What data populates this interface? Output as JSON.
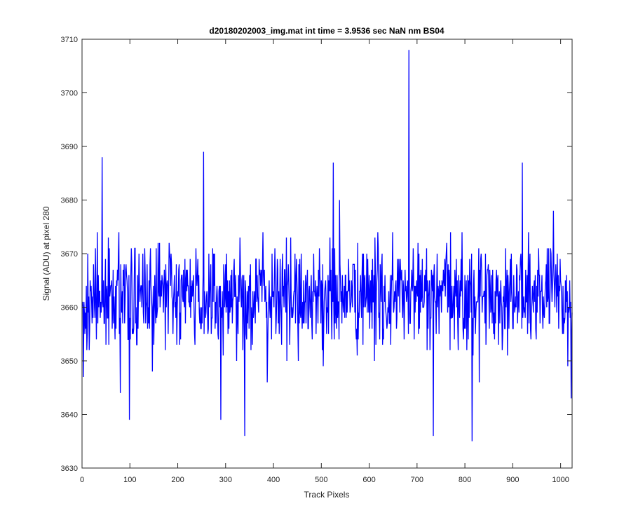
{
  "chart_data": {
    "type": "line",
    "title": "d20180202003_img.mat int time = 3.9536 sec  NaN nm BS04",
    "xlabel": "Track Pixels",
    "ylabel": "Signal (ADU) at pixel 280",
    "xlim": [
      0,
      1024
    ],
    "ylim": [
      3630,
      3710
    ],
    "xticks": [
      "0",
      "100",
      "200",
      "300",
      "400",
      "500",
      "600",
      "700",
      "800",
      "900",
      "1000"
    ],
    "yticks": [
      "3630",
      "3640",
      "3650",
      "3660",
      "3670",
      "3680",
      "3690",
      "3700",
      "3710"
    ],
    "grid": false,
    "series": [
      {
        "color": "#0000ff",
        "x_start": 1,
        "x_step": 1,
        "y_mean": 3662,
        "y_spread": 5,
        "sample_count": 1024,
        "notable_points": [
          {
            "x": 3,
            "y": 3647
          },
          {
            "x": 42,
            "y": 3688
          },
          {
            "x": 80,
            "y": 3644
          },
          {
            "x": 99,
            "y": 3639
          },
          {
            "x": 254,
            "y": 3689
          },
          {
            "x": 290,
            "y": 3639
          },
          {
            "x": 340,
            "y": 3636
          },
          {
            "x": 525,
            "y": 3687
          },
          {
            "x": 683,
            "y": 3708
          },
          {
            "x": 734,
            "y": 3636
          },
          {
            "x": 815,
            "y": 3635
          },
          {
            "x": 920,
            "y": 3687
          },
          {
            "x": 1022,
            "y": 3643
          }
        ]
      }
    ]
  }
}
